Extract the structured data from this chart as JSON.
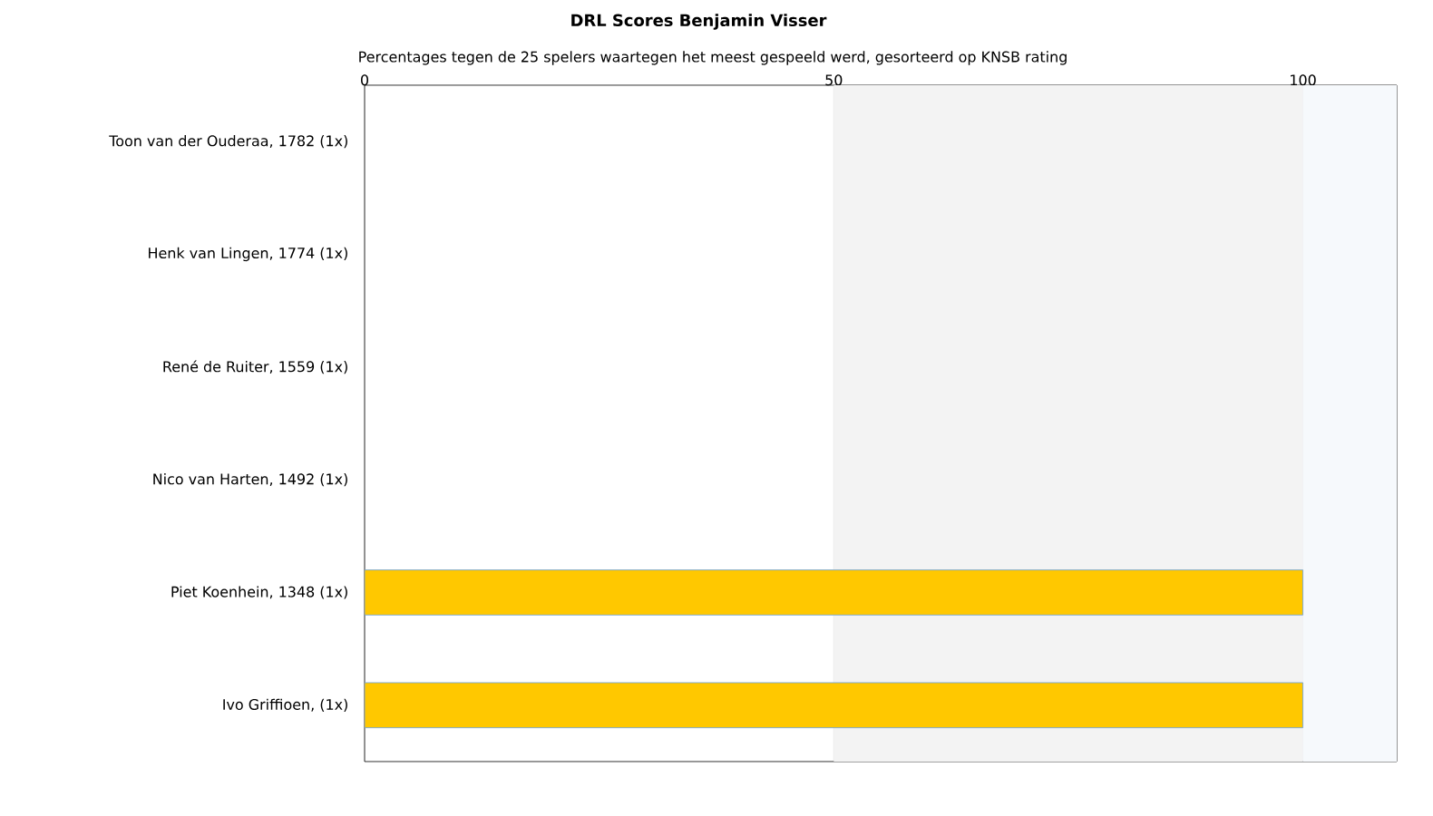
{
  "chart_data": {
    "type": "bar",
    "orientation": "horizontal",
    "title": "DRL Scores Benjamin Visser",
    "subtitle": "Percentages tegen de 25 spelers waartegen het meest gespeeld werd, gesorteerd op KNSB rating",
    "categories": [
      "Toon van der Ouderaa, 1782 (1x)",
      "Henk van Lingen, 1774 (1x)",
      "René de Ruiter, 1559 (1x)",
      "Nico van Harten, 1492 (1x)",
      "Piet Koenhein, 1348 (1x)",
      "Ivo Griffioen,  (1x)"
    ],
    "values": [
      0,
      0,
      0,
      0,
      100,
      100
    ],
    "color": "#ffc800",
    "xlim": [
      0,
      110
    ],
    "xticks": [
      0,
      50,
      100
    ],
    "grid": "x",
    "bands": [
      {
        "axis": "x",
        "from": 50,
        "to": 100,
        "color": "#f3f3f3"
      },
      {
        "axis": "x",
        "from": 100,
        "to": 110,
        "color": "#f6f9fc"
      }
    ]
  }
}
